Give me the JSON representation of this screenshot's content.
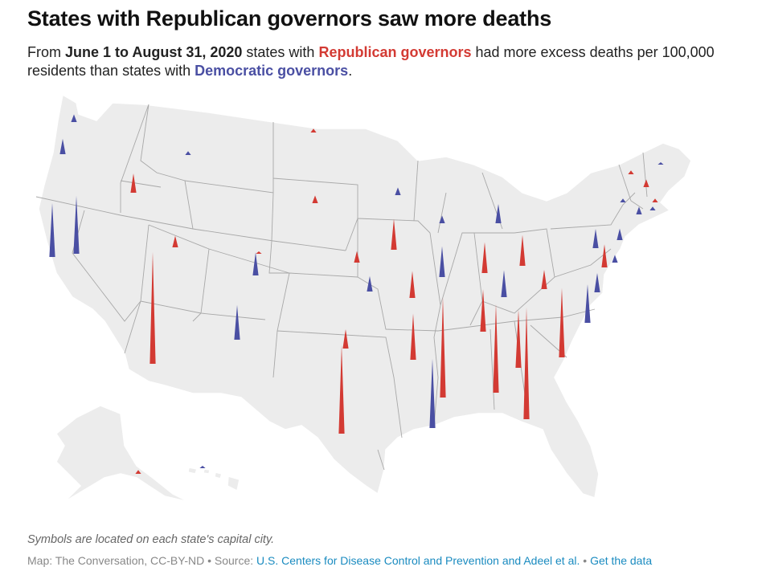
{
  "title": "States with Republican governors saw more deaths",
  "subtitle": {
    "part1": "From ",
    "date_range": "June 1 to August 31, 2020",
    "part2": " states with ",
    "republican_label": "Republican governors",
    "part3": " had more excess deaths per 100,000 residents than states with ",
    "democratic_label": "Democratic governors",
    "part4": "."
  },
  "note": "Symbols are located on each state's capital city.",
  "credits": {
    "map_credit": "Map: The Conversation, CC-BY-ND",
    "separator": " • ",
    "source_label": "Source: ",
    "source_link": "U.S. Centers for Disease Control and Prevention and Adeel et al.",
    "data_link": "Get the data"
  },
  "colors": {
    "republican": "#d33a33",
    "democratic": "#4a4fa3",
    "land": "#ececec",
    "border": "#a8a8a8"
  },
  "spikes": [
    {
      "state": "WA",
      "party": "D",
      "value": 2
    },
    {
      "state": "OR",
      "party": "D",
      "value": 4
    },
    {
      "state": "CA",
      "party": "D",
      "value": 14
    },
    {
      "state": "NV",
      "party": "D",
      "value": 15
    },
    {
      "state": "ID",
      "party": "R",
      "value": 5
    },
    {
      "state": "MT",
      "party": "D",
      "value": 1
    },
    {
      "state": "UT",
      "party": "R",
      "value": 3
    },
    {
      "state": "AZ",
      "party": "R",
      "value": 29
    },
    {
      "state": "WY",
      "party": "R",
      "value": 0.5
    },
    {
      "state": "CO",
      "party": "D",
      "value": 6
    },
    {
      "state": "NM",
      "party": "D",
      "value": 9
    },
    {
      "state": "ND",
      "party": "R",
      "value": 1
    },
    {
      "state": "SD",
      "party": "R",
      "value": 2
    },
    {
      "state": "NE",
      "party": "R",
      "value": 3
    },
    {
      "state": "KS",
      "party": "D",
      "value": 4
    },
    {
      "state": "OK",
      "party": "R",
      "value": 5
    },
    {
      "state": "TX",
      "party": "R",
      "value": 23
    },
    {
      "state": "MN",
      "party": "D",
      "value": 2
    },
    {
      "state": "IA",
      "party": "R",
      "value": 8
    },
    {
      "state": "MO",
      "party": "R",
      "value": 7
    },
    {
      "state": "AR",
      "party": "R",
      "value": 12
    },
    {
      "state": "LA",
      "party": "D",
      "value": 18
    },
    {
      "state": "WI",
      "party": "D",
      "value": 2
    },
    {
      "state": "IL",
      "party": "D",
      "value": 8
    },
    {
      "state": "MI",
      "party": "D",
      "value": 5
    },
    {
      "state": "IN",
      "party": "R",
      "value": 8
    },
    {
      "state": "OH",
      "party": "R",
      "value": 8
    },
    {
      "state": "KY",
      "party": "D",
      "value": 7
    },
    {
      "state": "TN",
      "party": "R",
      "value": 11
    },
    {
      "state": "MS",
      "party": "R",
      "value": 26
    },
    {
      "state": "AL",
      "party": "R",
      "value": 23
    },
    {
      "state": "GA",
      "party": "R",
      "value": 15
    },
    {
      "state": "FL",
      "party": "R",
      "value": 29
    },
    {
      "state": "SC",
      "party": "R",
      "value": 18
    },
    {
      "state": "NC",
      "party": "D",
      "value": 10
    },
    {
      "state": "VA",
      "party": "D",
      "value": 5
    },
    {
      "state": "WV",
      "party": "R",
      "value": 5
    },
    {
      "state": "PA",
      "party": "D",
      "value": 5
    },
    {
      "state": "MD",
      "party": "R",
      "value": 6
    },
    {
      "state": "DE",
      "party": "D",
      "value": 2
    },
    {
      "state": "NJ",
      "party": "D",
      "value": 3
    },
    {
      "state": "NY",
      "party": "D",
      "value": 1
    },
    {
      "state": "CT",
      "party": "D",
      "value": 2
    },
    {
      "state": "RI",
      "party": "D",
      "value": 1
    },
    {
      "state": "MA",
      "party": "R",
      "value": 1
    },
    {
      "state": "VT",
      "party": "R",
      "value": 1
    },
    {
      "state": "NH",
      "party": "R",
      "value": 2
    },
    {
      "state": "ME",
      "party": "D",
      "value": 0.5
    },
    {
      "state": "AK",
      "party": "R",
      "value": 1
    },
    {
      "state": "HI",
      "party": "D",
      "value": 0.5
    }
  ]
}
